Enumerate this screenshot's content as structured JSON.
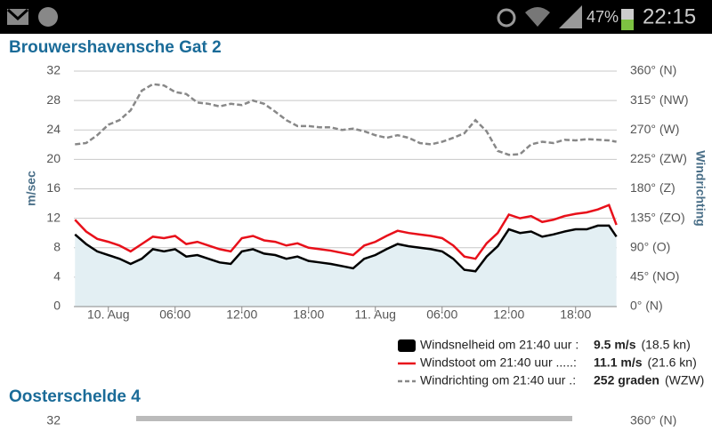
{
  "status_bar": {
    "battery": "47%",
    "time": "22:15"
  },
  "chart_data": {
    "type": "line",
    "title": "Brouwershavensche Gat 2",
    "ylabel": "m/sec",
    "y2label": "Windrichting",
    "x": [
      -3,
      -2,
      -1,
      0,
      1,
      2,
      3,
      4,
      5,
      6,
      7,
      8,
      9,
      10,
      11,
      12,
      13,
      14,
      15,
      16,
      17,
      18,
      19,
      20,
      21,
      22,
      23,
      24,
      25,
      26,
      27,
      28,
      29,
      30,
      31,
      32,
      33,
      34,
      35,
      36,
      37,
      38,
      39,
      40,
      41,
      42,
      43,
      44,
      45,
      45.67
    ],
    "xlim": [
      -3.1,
      45.7
    ],
    "xticks": [
      {
        "value": 0,
        "label": "10. Aug"
      },
      {
        "value": 6,
        "label": "06:00"
      },
      {
        "value": 12,
        "label": "12:00"
      },
      {
        "value": 18,
        "label": "18:00"
      },
      {
        "value": 24,
        "label": "11. Aug"
      },
      {
        "value": 30,
        "label": "06:00"
      },
      {
        "value": 36,
        "label": "12:00"
      },
      {
        "value": 42,
        "label": "18:00"
      }
    ],
    "ylim": [
      0,
      32
    ],
    "yticks": [
      0,
      4,
      8,
      12,
      16,
      20,
      24,
      28,
      32
    ],
    "y2lim": [
      0,
      360
    ],
    "y2ticks": [
      {
        "value": 0,
        "label": "0° (N)"
      },
      {
        "value": 45,
        "label": "45° (NO)"
      },
      {
        "value": 90,
        "label": "90° (O)"
      },
      {
        "value": 135,
        "label": "135° (ZO)"
      },
      {
        "value": 180,
        "label": "180° (Z)"
      },
      {
        "value": 225,
        "label": "225° (ZW)"
      },
      {
        "value": 270,
        "label": "270° (W)"
      },
      {
        "value": 315,
        "label": "315° (NW)"
      },
      {
        "value": 360,
        "label": "360° (N)"
      }
    ],
    "grid": true,
    "area_color": "#e3eff3",
    "series": [
      {
        "name": "Windsnelheid om 21:40 uur :",
        "current": "9.5 m/s",
        "current_alt": "(18.5 kn)",
        "color": "#000000",
        "area": true,
        "values": [
          9.8,
          8.5,
          7.5,
          7.0,
          6.5,
          5.8,
          6.5,
          7.8,
          7.5,
          7.8,
          6.8,
          7.0,
          6.5,
          6.0,
          5.8,
          7.5,
          7.8,
          7.2,
          7.0,
          6.5,
          6.8,
          6.2,
          6.0,
          5.8,
          5.5,
          5.2,
          6.5,
          7.0,
          7.8,
          8.5,
          8.2,
          8.0,
          7.8,
          7.5,
          6.5,
          5.0,
          4.8,
          6.8,
          8.2,
          10.5,
          10.0,
          10.2,
          9.5,
          9.8,
          10.2,
          10.5,
          10.5,
          11.0,
          11.0,
          9.5
        ]
      },
      {
        "name": "Windstoot om 21:40 uur .....:",
        "current": "11.1 m/s",
        "current_alt": "(21.6 kn)",
        "color": "#e8101a",
        "values": [
          11.8,
          10.2,
          9.2,
          8.8,
          8.3,
          7.5,
          8.5,
          9.5,
          9.3,
          9.6,
          8.5,
          8.8,
          8.3,
          7.8,
          7.5,
          9.3,
          9.6,
          9.0,
          8.8,
          8.3,
          8.6,
          8.0,
          7.8,
          7.6,
          7.3,
          7.0,
          8.3,
          8.8,
          9.6,
          10.3,
          10.0,
          9.8,
          9.6,
          9.3,
          8.3,
          6.8,
          6.5,
          8.6,
          10.0,
          12.5,
          12.0,
          12.3,
          11.5,
          11.8,
          12.3,
          12.6,
          12.8,
          13.2,
          13.8,
          11.1
        ]
      },
      {
        "name": "Windrichting om 21:40 uur .:",
        "current": "252 graden",
        "current_alt": "(WZW)",
        "color": "#888888",
        "dashed": true,
        "axis": "y2",
        "values": [
          248,
          250,
          262,
          278,
          285,
          300,
          330,
          340,
          338,
          328,
          325,
          312,
          310,
          306,
          310,
          308,
          315,
          310,
          298,
          285,
          276,
          276,
          274,
          274,
          270,
          272,
          268,
          262,
          258,
          262,
          258,
          250,
          248,
          252,
          258,
          265,
          285,
          268,
          238,
          232,
          233,
          248,
          252,
          250,
          255,
          254,
          256,
          255,
          254,
          252
        ]
      }
    ]
  },
  "next_panel": {
    "title": "Oosterschelde 4",
    "ytick_top": "32",
    "y2tick_top": "360° (N)"
  }
}
